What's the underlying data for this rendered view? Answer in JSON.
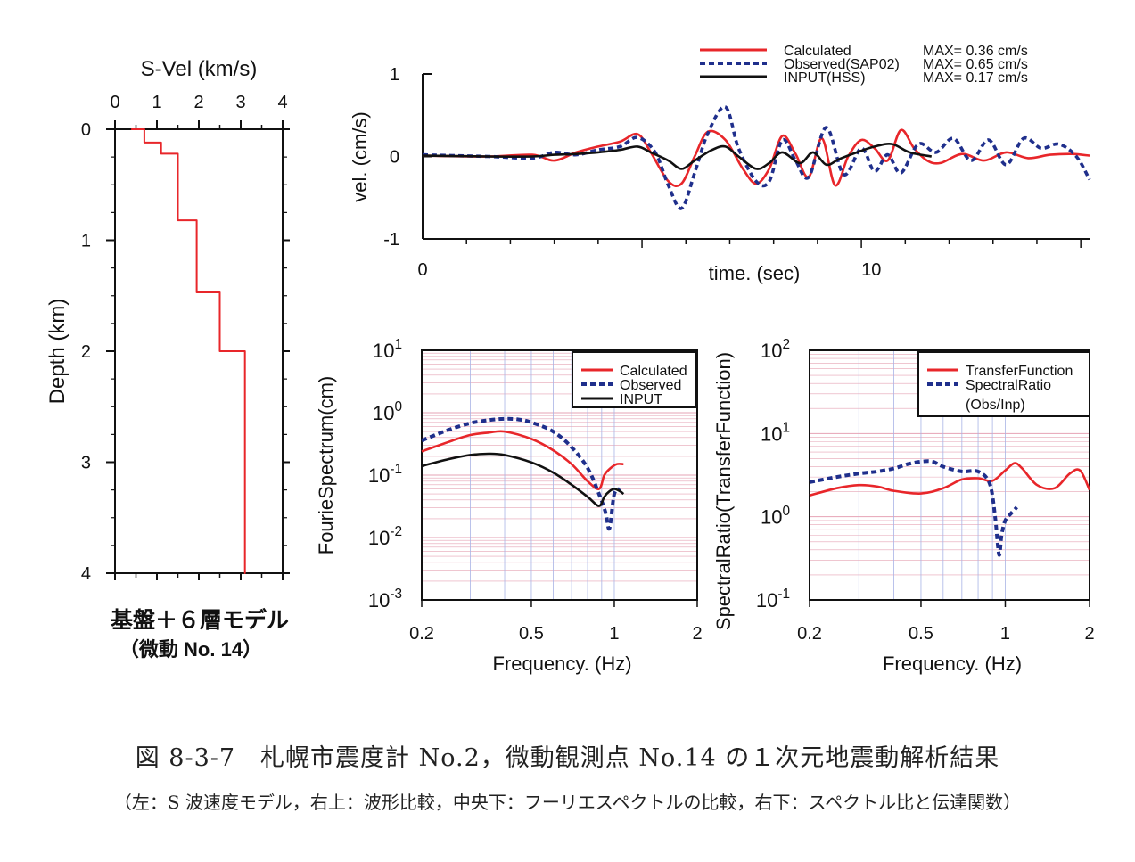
{
  "colors": {
    "calculated": "#e8262a",
    "observed": "#1f2f8c",
    "input": "#111111",
    "grid_h": "#e6a3b4",
    "grid_v": "#a9b4e6"
  },
  "captions": {
    "main": "図 8-3-7　札幌市震度計 No.2，微動観測点 No.14 の１次元地震動解析結果",
    "sub": "（左：S 波速度モデル，右上：波形比較，中央下：フーリエスペクトルの比較，右下：スペクトル比と伝達関数）"
  },
  "chart_data": [
    {
      "id": "velocity_model",
      "type": "line",
      "title": "S-Vel (km/s)",
      "ylabel": "Depth (km)",
      "xlim": [
        0,
        4
      ],
      "ylim": [
        4,
        0
      ],
      "xticks": [
        "0",
        "1",
        "2",
        "3",
        "4"
      ],
      "yticks": [
        "0",
        "1",
        "2",
        "3",
        "4"
      ],
      "notes": [
        "基盤＋６層モデル",
        "（微動 No. 14）"
      ],
      "profile": [
        [
          0.4,
          0
        ],
        [
          0.7,
          0
        ],
        [
          0.7,
          0.12
        ],
        [
          1.1,
          0.12
        ],
        [
          1.1,
          0.22
        ],
        [
          1.5,
          0.22
        ],
        [
          1.5,
          0.82
        ],
        [
          1.95,
          0.82
        ],
        [
          1.95,
          1.47
        ],
        [
          2.5,
          1.47
        ],
        [
          2.5,
          2.0
        ],
        [
          3.1,
          2.0
        ],
        [
          3.1,
          4.0
        ]
      ]
    },
    {
      "id": "waveform",
      "type": "line",
      "xlabel": "time. (sec)",
      "ylabel": "vel. (cm/s)",
      "xlim": [
        0,
        15.2
      ],
      "ylim": [
        -1,
        1
      ],
      "xtick_values": [
        0,
        10
      ],
      "xticks": [
        "0",
        "10"
      ],
      "ytick_values": [
        1,
        0,
        -1
      ],
      "yticks": [
        "1",
        "0",
        "-1"
      ],
      "legend_position": "top-right",
      "series": [
        {
          "name": "Calculated",
          "max_label": "MAX= 0.36 cm/s",
          "x": [
            0,
            1.5,
            2.5,
            3.0,
            3.5,
            4.0,
            4.5,
            4.9,
            5.2,
            5.6,
            5.9,
            6.2,
            6.5,
            6.9,
            7.3,
            7.6,
            7.9,
            8.2,
            8.5,
            8.8,
            9.1,
            9.4,
            9.7,
            10.0,
            10.3,
            10.6,
            10.9,
            11.2,
            11.5,
            11.8,
            12.3,
            12.8,
            13.3,
            13.8,
            14.3,
            14.8,
            15.2
          ],
          "y": [
            0.01,
            0.0,
            0.02,
            -0.05,
            0.05,
            0.12,
            0.18,
            0.27,
            0.05,
            -0.3,
            -0.33,
            0.0,
            0.3,
            0.2,
            -0.15,
            -0.33,
            -0.15,
            0.25,
            0.03,
            -0.25,
            0.22,
            -0.35,
            0.0,
            0.2,
            0.1,
            -0.05,
            0.32,
            0.1,
            -0.05,
            -0.08,
            0.03,
            -0.05,
            0.05,
            -0.02,
            0.02,
            0.03,
            0.01
          ]
        },
        {
          "name": "Observed(SAP02)",
          "max_label": "MAX= 0.65 cm/s",
          "x": [
            0,
            1.5,
            2.5,
            3.0,
            3.5,
            4.0,
            4.5,
            4.9,
            5.3,
            5.6,
            5.9,
            6.2,
            6.5,
            6.9,
            7.2,
            7.6,
            7.9,
            8.2,
            8.5,
            8.8,
            9.2,
            9.6,
            10.0,
            10.3,
            10.6,
            10.9,
            11.3,
            11.7,
            12.1,
            12.5,
            12.9,
            13.3,
            13.7,
            14.1,
            14.5,
            14.9,
            15.2
          ],
          "y": [
            0.02,
            0.0,
            -0.02,
            0.05,
            0.02,
            0.08,
            0.12,
            0.23,
            0.05,
            -0.35,
            -0.63,
            -0.2,
            0.28,
            0.6,
            0.1,
            -0.3,
            -0.3,
            0.2,
            -0.05,
            -0.25,
            0.35,
            -0.22,
            0.1,
            -0.18,
            0.02,
            -0.2,
            0.15,
            0.05,
            0.22,
            -0.05,
            0.2,
            -0.1,
            0.22,
            0.1,
            0.15,
            0.0,
            -0.28
          ]
        },
        {
          "name": "INPUT(HSS)",
          "max_label": "MAX= 0.17 cm/s",
          "x": [
            0,
            1.5,
            2.5,
            3.0,
            3.5,
            4.0,
            4.5,
            4.9,
            5.2,
            5.6,
            5.9,
            6.2,
            6.6,
            6.9,
            7.2,
            7.6,
            7.9,
            8.2,
            8.6,
            8.9,
            9.2,
            9.5,
            9.9,
            10.3,
            10.7,
            11.1,
            11.6
          ],
          "y": [
            0.01,
            0.0,
            0.0,
            0.02,
            0.03,
            0.05,
            0.08,
            0.12,
            0.05,
            -0.05,
            -0.15,
            -0.05,
            0.08,
            0.12,
            0.0,
            -0.15,
            -0.08,
            0.05,
            -0.08,
            0.05,
            -0.1,
            -0.03,
            0.05,
            0.12,
            0.15,
            0.05,
            0.0
          ]
        }
      ]
    },
    {
      "id": "fourier",
      "type": "line",
      "xlabel": "Frequency. (Hz)",
      "ylabel": "FourieSpectrum(cm)",
      "xscale": "log",
      "yscale": "log",
      "xlim": [
        0.2,
        2
      ],
      "ylim": [
        0.001,
        10
      ],
      "xtick_values": [
        0.2,
        0.5,
        1,
        2
      ],
      "xticks": [
        "0.2",
        "0.5",
        "1",
        "2"
      ],
      "ytick_values": [
        10,
        1,
        0.1,
        0.01,
        0.001
      ],
      "yticks": [
        {
          "base": "10",
          "exp": "1"
        },
        {
          "base": "10",
          "exp": "0"
        },
        {
          "base": "10",
          "exp": "-1"
        },
        {
          "base": "10",
          "exp": "-2"
        },
        {
          "base": "10",
          "exp": "-3"
        }
      ],
      "grid": true,
      "legend_position": "top-right",
      "series": [
        {
          "name": "Calculated",
          "x": [
            0.2,
            0.25,
            0.3,
            0.35,
            0.4,
            0.5,
            0.6,
            0.7,
            0.8,
            0.88,
            0.92,
            0.97,
            1.02,
            1.08
          ],
          "y": [
            0.24,
            0.34,
            0.44,
            0.48,
            0.5,
            0.38,
            0.25,
            0.15,
            0.08,
            0.06,
            0.1,
            0.13,
            0.15,
            0.15
          ]
        },
        {
          "name": "Observed",
          "x": [
            0.2,
            0.25,
            0.3,
            0.35,
            0.4,
            0.45,
            0.5,
            0.6,
            0.7,
            0.8,
            0.88,
            0.93,
            0.96,
            1.0,
            1.05
          ],
          "y": [
            0.36,
            0.53,
            0.68,
            0.76,
            0.8,
            0.78,
            0.7,
            0.5,
            0.28,
            0.13,
            0.05,
            0.025,
            0.014,
            0.05,
            0.06
          ]
        },
        {
          "name": "INPUT",
          "x": [
            0.2,
            0.25,
            0.3,
            0.35,
            0.4,
            0.5,
            0.6,
            0.7,
            0.8,
            0.88,
            0.92,
            0.96,
            1.0,
            1.05,
            1.08
          ],
          "y": [
            0.14,
            0.18,
            0.21,
            0.22,
            0.21,
            0.16,
            0.11,
            0.07,
            0.045,
            0.032,
            0.045,
            0.055,
            0.06,
            0.055,
            0.05
          ]
        }
      ]
    },
    {
      "id": "spectral_ratio",
      "type": "line",
      "xlabel": "Frequency. (Hz)",
      "ylabel": "SpectralRatio(TransferFunction)",
      "xscale": "log",
      "yscale": "log",
      "xlim": [
        0.2,
        2
      ],
      "ylim": [
        0.1,
        100
      ],
      "xtick_values": [
        0.2,
        0.5,
        1,
        2
      ],
      "xticks": [
        "0.2",
        "0.5",
        "1",
        "2"
      ],
      "ytick_values": [
        100,
        10,
        1,
        0.1
      ],
      "yticks": [
        {
          "base": "10",
          "exp": "2"
        },
        {
          "base": "10",
          "exp": "1"
        },
        {
          "base": "10",
          "exp": "0"
        },
        {
          "base": "10",
          "exp": "-1"
        }
      ],
      "grid": true,
      "legend_position": "top-right",
      "series": [
        {
          "name": "TransferFunction",
          "x": [
            0.2,
            0.25,
            0.3,
            0.35,
            0.4,
            0.5,
            0.6,
            0.7,
            0.8,
            0.9,
            1.0,
            1.08,
            1.15,
            1.3,
            1.5,
            1.7,
            1.85,
            2.0
          ],
          "y": [
            1.8,
            2.2,
            2.4,
            2.3,
            2.05,
            1.9,
            2.2,
            2.8,
            2.9,
            2.7,
            3.6,
            4.4,
            3.8,
            2.4,
            2.2,
            3.3,
            3.6,
            2.1
          ]
        },
        {
          "name": "SpectralRatio",
          "legend_sub": "(Obs/Inp)",
          "x": [
            0.2,
            0.25,
            0.3,
            0.35,
            0.4,
            0.45,
            0.5,
            0.55,
            0.6,
            0.7,
            0.8,
            0.88,
            0.92,
            0.95,
            0.97,
            1.0,
            1.05,
            1.1
          ],
          "y": [
            2.6,
            3.0,
            3.3,
            3.5,
            3.8,
            4.3,
            4.6,
            4.6,
            4.0,
            3.5,
            3.5,
            2.5,
            1.0,
            0.35,
            0.6,
            0.9,
            1.1,
            1.3
          ]
        }
      ]
    }
  ]
}
